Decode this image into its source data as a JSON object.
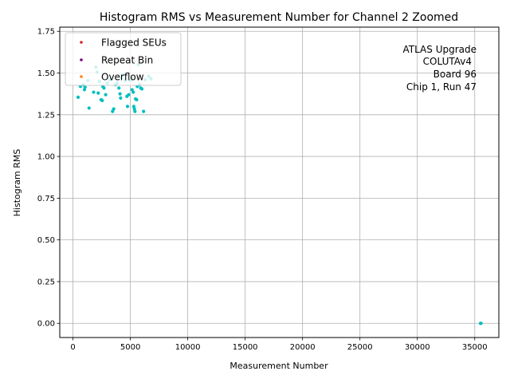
{
  "chart_data": {
    "type": "scatter",
    "title": "Histogram RMS vs Measurement Number for Channel 2 Zoomed",
    "xlabel": "Measurement Number",
    "ylabel": "Histogram RMS",
    "xlim": [
      -1150,
      37100
    ],
    "ylim": [
      -0.085,
      1.775
    ],
    "xticks": [
      0,
      5000,
      10000,
      15000,
      20000,
      25000,
      30000,
      35000
    ],
    "yticks": [
      0.0,
      0.25,
      0.5,
      0.75,
      1.0,
      1.25,
      1.5,
      1.75
    ],
    "xtick_labels": [
      "0",
      "5000",
      "10000",
      "15000",
      "20000",
      "25000",
      "30000",
      "35000"
    ],
    "ytick_labels": [
      "0.00",
      "0.25",
      "0.50",
      "0.75",
      "1.00",
      "1.25",
      "1.50",
      "1.75"
    ],
    "grid": true,
    "legend_position": "top-left",
    "legend": [
      {
        "label": "Flagged SEUs",
        "color": "#d62728"
      },
      {
        "label": "Repeat Bin",
        "color": "#800080"
      },
      {
        "label": "Overflow",
        "color": "#ff7f0e"
      }
    ],
    "annotation_lines": [
      "ATLAS Upgrade",
      "COLUTAv4",
      "Board 96",
      "Chip 1, Run 47"
    ],
    "main_series_color": "#00bfbf",
    "points": [
      {
        "x": 450,
        "y": 1.355
      },
      {
        "x": 650,
        "y": 1.42
      },
      {
        "x": 900,
        "y": 1.43
      },
      {
        "x": 1000,
        "y": 1.4
      },
      {
        "x": 1050,
        "y": 1.415
      },
      {
        "x": 1300,
        "y": 1.455
      },
      {
        "x": 1400,
        "y": 1.29
      },
      {
        "x": 1800,
        "y": 1.385
      },
      {
        "x": 2000,
        "y": 1.535
      },
      {
        "x": 2100,
        "y": 1.505
      },
      {
        "x": 2200,
        "y": 1.38
      },
      {
        "x": 2300,
        "y": 1.45
      },
      {
        "x": 2450,
        "y": 1.34
      },
      {
        "x": 2550,
        "y": 1.335
      },
      {
        "x": 2600,
        "y": 1.42
      },
      {
        "x": 2700,
        "y": 1.41
      },
      {
        "x": 2850,
        "y": 1.37
      },
      {
        "x": 3000,
        "y": 1.44
      },
      {
        "x": 3200,
        "y": 1.46
      },
      {
        "x": 3450,
        "y": 1.27
      },
      {
        "x": 3550,
        "y": 1.285
      },
      {
        "x": 3700,
        "y": 1.43
      },
      {
        "x": 3850,
        "y": 1.44
      },
      {
        "x": 4000,
        "y": 1.41
      },
      {
        "x": 4100,
        "y": 1.375
      },
      {
        "x": 4150,
        "y": 1.35
      },
      {
        "x": 4200,
        "y": 1.47
      },
      {
        "x": 4400,
        "y": 1.49
      },
      {
        "x": 4550,
        "y": 1.455
      },
      {
        "x": 4700,
        "y": 1.36
      },
      {
        "x": 4750,
        "y": 1.3
      },
      {
        "x": 4850,
        "y": 1.37
      },
      {
        "x": 5000,
        "y": 1.455
      },
      {
        "x": 5100,
        "y": 1.47
      },
      {
        "x": 5150,
        "y": 1.4
      },
      {
        "x": 5250,
        "y": 1.385
      },
      {
        "x": 5300,
        "y": 1.3
      },
      {
        "x": 5350,
        "y": 1.285
      },
      {
        "x": 5400,
        "y": 1.27
      },
      {
        "x": 5450,
        "y": 1.345
      },
      {
        "x": 5550,
        "y": 1.34
      },
      {
        "x": 5600,
        "y": 1.42
      },
      {
        "x": 5700,
        "y": 1.55
      },
      {
        "x": 5800,
        "y": 1.43
      },
      {
        "x": 5900,
        "y": 1.41
      },
      {
        "x": 6000,
        "y": 1.405
      },
      {
        "x": 6150,
        "y": 1.27
      },
      {
        "x": 6300,
        "y": 1.46
      },
      {
        "x": 6600,
        "y": 1.48
      },
      {
        "x": 6800,
        "y": 1.465
      },
      {
        "x": 35500,
        "y": 0.0
      },
      {
        "x": 35550,
        "y": 0.0
      }
    ]
  }
}
